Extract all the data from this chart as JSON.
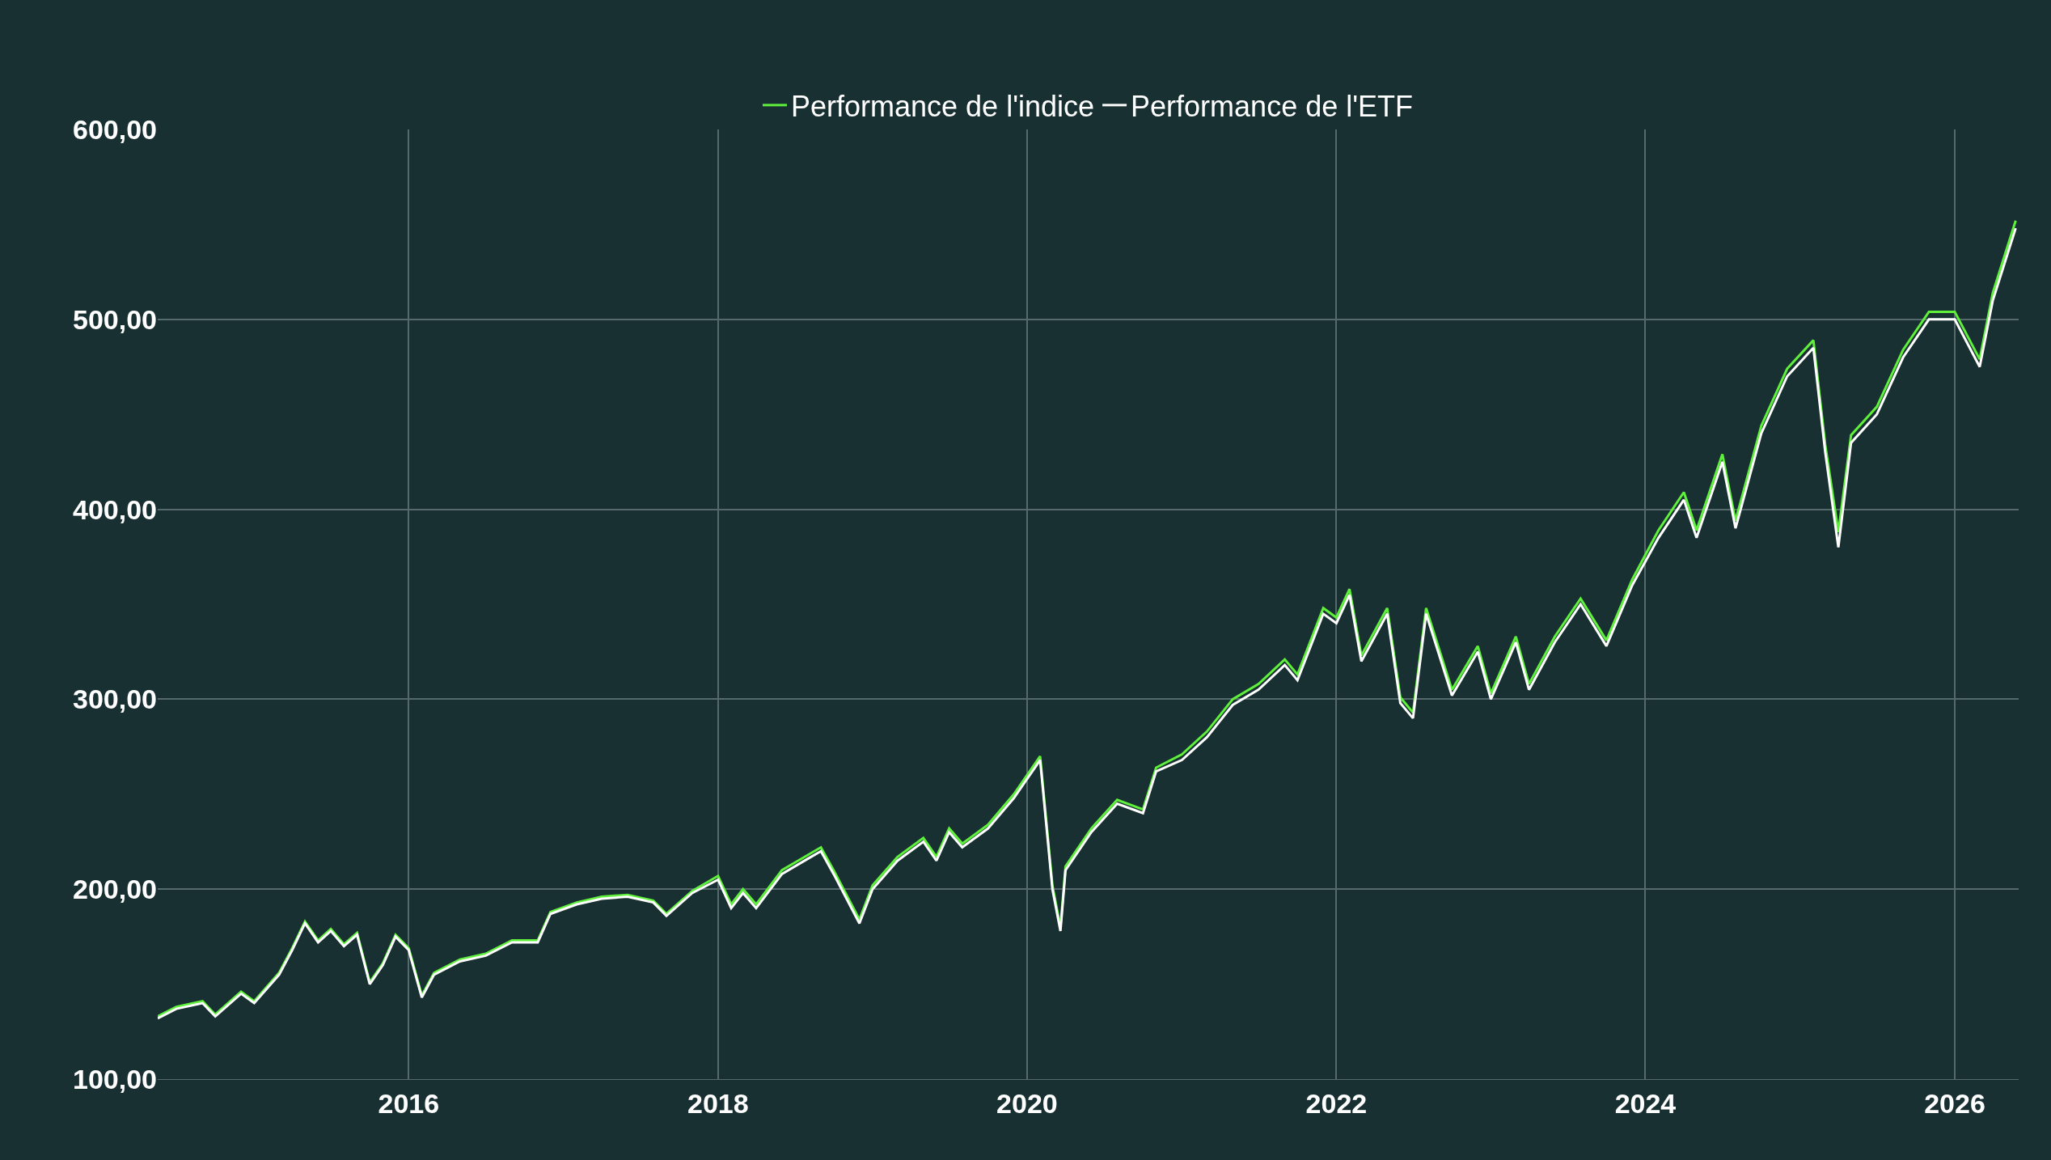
{
  "chart_data": {
    "type": "line",
    "x": [
      "2014-05-18",
      "2014-07",
      "2014-09",
      "2014-10",
      "2014-12",
      "2015-01",
      "2015-03",
      "2015-04",
      "2015-05",
      "2015-06",
      "2015-07",
      "2015-08",
      "2015-09",
      "2015-10",
      "2015-11",
      "2015-12",
      "2016-01",
      "2016-02",
      "2016-03",
      "2016-05",
      "2016-07",
      "2016-09",
      "2016-11",
      "2016-12",
      "2017-02",
      "2017-04",
      "2017-06",
      "2017-08",
      "2017-09",
      "2017-11",
      "2018-01",
      "2018-02",
      "2018-03",
      "2018-04",
      "2018-06",
      "2018-08",
      "2018-09",
      "2018-10",
      "2018-12",
      "2019-01",
      "2019-03",
      "2019-05",
      "2019-06",
      "2019-07",
      "2019-08",
      "2019-10",
      "2019-12",
      "2020-02",
      "2020-03",
      "2020-03-20",
      "2020-04",
      "2020-06",
      "2020-08",
      "2020-10",
      "2020-11",
      "2021-01",
      "2021-03",
      "2021-05",
      "2021-07",
      "2021-09",
      "2021-10",
      "2021-12",
      "2022-01",
      "2022-02",
      "2022-03",
      "2022-05",
      "2022-06",
      "2022-07",
      "2022-08",
      "2022-10",
      "2022-12",
      "2023-01",
      "2023-03",
      "2023-04",
      "2023-06",
      "2023-08",
      "2023-10",
      "2023-12",
      "2024-02",
      "2024-04",
      "2024-05",
      "2024-07",
      "2024-08",
      "2024-10",
      "2024-12",
      "2025-02",
      "2025-03",
      "2025-04",
      "2025-05",
      "2025-07",
      "2025-09",
      "2025-11",
      "2026-01",
      "2026-03",
      "2026-04",
      "2026-05-25"
    ],
    "series": [
      {
        "name": "Performance de l'indice",
        "color": "#5ef03a",
        "values": [
          133,
          138,
          141,
          134,
          146,
          141,
          156,
          169,
          183,
          173,
          179,
          171,
          177,
          151,
          161,
          176,
          169,
          144,
          156,
          163,
          166,
          173,
          173,
          188,
          193,
          196,
          197,
          194,
          187,
          199,
          207,
          192,
          200,
          192,
          210,
          218,
          222,
          210,
          184,
          202,
          217,
          227,
          217,
          232,
          224,
          234,
          250,
          270,
          202,
          180,
          212,
          232,
          247,
          242,
          264,
          271,
          283,
          300,
          308,
          321,
          313,
          348,
          343,
          358,
          323,
          348,
          301,
          293,
          348,
          305,
          328,
          303,
          333,
          308,
          333,
          353,
          331,
          363,
          389,
          409,
          389,
          429,
          394,
          444,
          474,
          489,
          434,
          388,
          439,
          454,
          484,
          504,
          504,
          479,
          514,
          552
        ]
      },
      {
        "name": "Performance de l'ETF",
        "color": "#ffffff",
        "values": [
          132,
          137,
          140,
          133,
          145,
          140,
          155,
          168,
          182,
          172,
          178,
          170,
          176,
          150,
          160,
          175,
          168,
          143,
          155,
          162,
          165,
          172,
          172,
          187,
          192,
          195,
          196,
          193,
          186,
          198,
          205,
          190,
          198,
          190,
          208,
          216,
          220,
          208,
          182,
          200,
          215,
          225,
          215,
          230,
          222,
          232,
          248,
          268,
          200,
          178,
          210,
          230,
          245,
          240,
          262,
          268,
          280,
          297,
          305,
          318,
          310,
          345,
          340,
          355,
          320,
          345,
          298,
          290,
          345,
          302,
          325,
          300,
          330,
          305,
          330,
          350,
          328,
          360,
          385,
          405,
          385,
          425,
          390,
          440,
          470,
          485,
          430,
          380,
          435,
          450,
          480,
          500,
          500,
          475,
          510,
          548
        ]
      }
    ],
    "xlim": [
      "2014-05-18",
      "2026-06-01"
    ],
    "xticks": [
      "2016",
      "2018",
      "2020",
      "2022",
      "2024",
      "2026"
    ],
    "ylim": [
      100,
      600
    ],
    "yticks": [
      {
        "value": 100,
        "label": "100,00"
      },
      {
        "value": 200,
        "label": "200,00"
      },
      {
        "value": 300,
        "label": "300,00"
      },
      {
        "value": 400,
        "label": "400,00"
      },
      {
        "value": 500,
        "label": "500,00"
      },
      {
        "value": 600,
        "label": "600,00"
      }
    ],
    "grid": true,
    "legend": "top",
    "marker": "none",
    "line_style": "solid"
  }
}
